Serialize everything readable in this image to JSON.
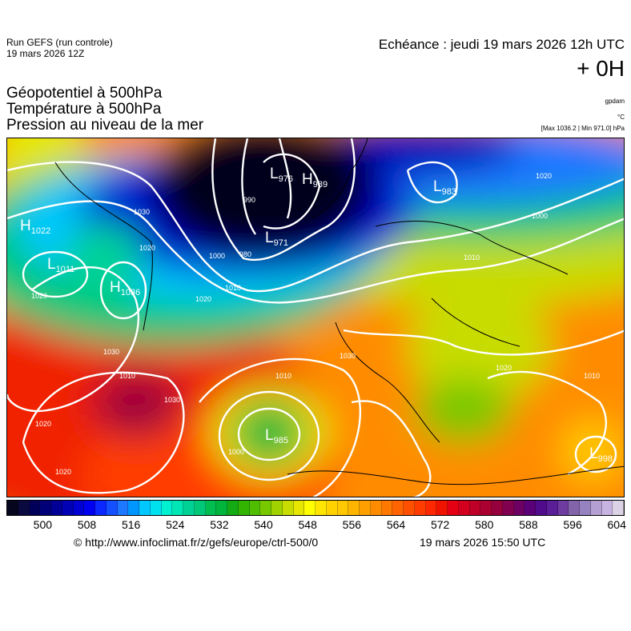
{
  "header": {
    "run": "Run GEFS (run controle)",
    "run_date": "19 mars 2026 12Z",
    "valid": "Echéance : jeudi 19 mars 2026 12h UTC",
    "lead": "+ 0H"
  },
  "titles": [
    "Géopotentiel à 500hPa",
    "Température à 500hPa",
    "Pression au niveau de la mer"
  ],
  "units": {
    "geopotential": "gpdam",
    "temperature": "°C",
    "pressure": "[Max 1036.2 | Min 971.0] hPa"
  },
  "pressure_centers": [
    {
      "type": "H",
      "value": "1022"
    },
    {
      "type": "L",
      "value": "1011"
    },
    {
      "type": "H",
      "value": "1036"
    },
    {
      "type": "L",
      "value": "976"
    },
    {
      "type": "H",
      "value": "989"
    },
    {
      "type": "L",
      "value": "971"
    },
    {
      "type": "L",
      "value": "983"
    },
    {
      "type": "L",
      "value": "985"
    },
    {
      "type": "L",
      "value": "998"
    }
  ],
  "isobar_labels": [
    "1020",
    "1030",
    "1020",
    "1020",
    "990",
    "980",
    "1000",
    "1010",
    "1020",
    "1030",
    "1030",
    "1020",
    "1010",
    "1000",
    "1010",
    "1020",
    "1020",
    "1010",
    "1030",
    "1000",
    "1010"
  ],
  "colorbar": {
    "colors": [
      "#06061e",
      "#0a0a40",
      "#00005a",
      "#000078",
      "#000096",
      "#0000b4",
      "#0000d2",
      "#0000f0",
      "#0a28ff",
      "#1450ff",
      "#1e78ff",
      "#0096ff",
      "#00c8ff",
      "#00e1f0",
      "#00f0d2",
      "#00e6b4",
      "#00d296",
      "#00c878",
      "#00be50",
      "#00b43c",
      "#14aa14",
      "#32b400",
      "#50be00",
      "#78c800",
      "#a0d200",
      "#c8dc00",
      "#e6e600",
      "#ffff00",
      "#ffe600",
      "#ffd200",
      "#ffc800",
      "#ffb400",
      "#ffa000",
      "#ff8c00",
      "#ff7800",
      "#ff6400",
      "#ff5000",
      "#ff3c00",
      "#ff2800",
      "#f01400",
      "#e60014",
      "#d2001e",
      "#be0028",
      "#aa0032",
      "#96003c",
      "#820050",
      "#6e0064",
      "#5a0078",
      "#500a8c",
      "#5a1e96",
      "#6e3ca0",
      "#8264aa",
      "#9682be",
      "#b4a0d2",
      "#c8b4e1",
      "#dcd2e6"
    ],
    "labels": [
      "500",
      "508",
      "516",
      "524",
      "532",
      "540",
      "548",
      "556",
      "564",
      "572",
      "580",
      "588",
      "596",
      "604"
    ]
  },
  "footer": {
    "source": "© http://www.infoclimat.fr/z/gefs/europe/ctrl-500/0",
    "generated": "19 mars 2026 15:50 UTC"
  }
}
